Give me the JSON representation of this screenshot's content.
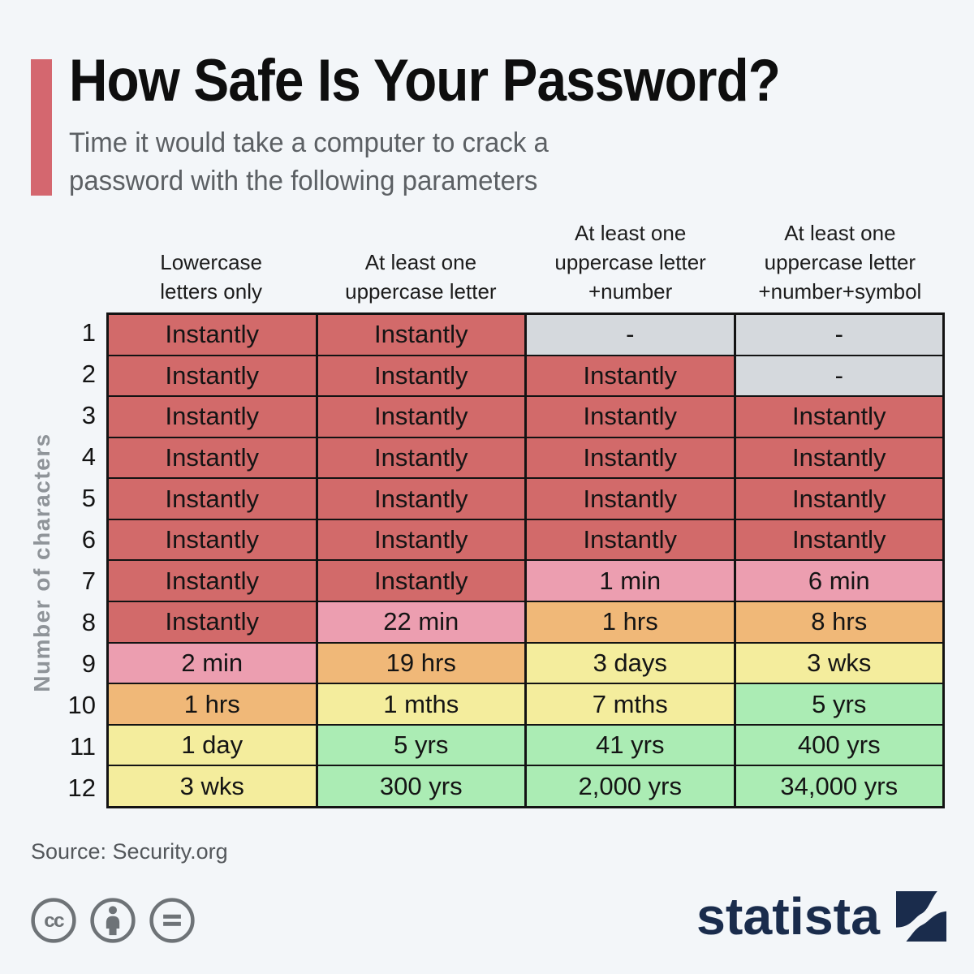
{
  "header": {
    "title": "How Safe Is Your Password?",
    "subtitle_lines": [
      "Time it would take a computer to crack a",
      "password with the following parameters"
    ]
  },
  "chart_data": {
    "type": "heatmap",
    "title": "How Safe Is Your Password?",
    "subtitle": "Time it would take a computer to crack a password with the following parameters",
    "y_axis_label": "Number of characters",
    "columns": [
      {
        "label": "Lowercase letters only",
        "label_lines": [
          "Lowercase",
          "letters only"
        ]
      },
      {
        "label": "At least one uppercase letter",
        "label_lines": [
          "At least one",
          "uppercase letter"
        ]
      },
      {
        "label": "At least one uppercase letter +number",
        "label_lines": [
          "At least one",
          "uppercase letter",
          "+number"
        ]
      },
      {
        "label": "At least one uppercase letter +number+symbol",
        "label_lines": [
          "At least one",
          "uppercase letter",
          "+number+symbol"
        ]
      }
    ],
    "rows": [
      {
        "label": "1",
        "cells": [
          {
            "text": "Instantly",
            "level": "red"
          },
          {
            "text": "Instantly",
            "level": "red"
          },
          {
            "text": "-",
            "level": "gray"
          },
          {
            "text": "-",
            "level": "gray"
          }
        ]
      },
      {
        "label": "2",
        "cells": [
          {
            "text": "Instantly",
            "level": "red"
          },
          {
            "text": "Instantly",
            "level": "red"
          },
          {
            "text": "Instantly",
            "level": "red"
          },
          {
            "text": "-",
            "level": "gray"
          }
        ]
      },
      {
        "label": "3",
        "cells": [
          {
            "text": "Instantly",
            "level": "red"
          },
          {
            "text": "Instantly",
            "level": "red"
          },
          {
            "text": "Instantly",
            "level": "red"
          },
          {
            "text": "Instantly",
            "level": "red"
          }
        ]
      },
      {
        "label": "4",
        "cells": [
          {
            "text": "Instantly",
            "level": "red"
          },
          {
            "text": "Instantly",
            "level": "red"
          },
          {
            "text": "Instantly",
            "level": "red"
          },
          {
            "text": "Instantly",
            "level": "red"
          }
        ]
      },
      {
        "label": "5",
        "cells": [
          {
            "text": "Instantly",
            "level": "red"
          },
          {
            "text": "Instantly",
            "level": "red"
          },
          {
            "text": "Instantly",
            "level": "red"
          },
          {
            "text": "Instantly",
            "level": "red"
          }
        ]
      },
      {
        "label": "6",
        "cells": [
          {
            "text": "Instantly",
            "level": "red"
          },
          {
            "text": "Instantly",
            "level": "red"
          },
          {
            "text": "Instantly",
            "level": "red"
          },
          {
            "text": "Instantly",
            "level": "red"
          }
        ]
      },
      {
        "label": "7",
        "cells": [
          {
            "text": "Instantly",
            "level": "red"
          },
          {
            "text": "Instantly",
            "level": "red"
          },
          {
            "text": "1 min",
            "level": "pink"
          },
          {
            "text": "6 min",
            "level": "pink"
          }
        ]
      },
      {
        "label": "8",
        "cells": [
          {
            "text": "Instantly",
            "level": "red"
          },
          {
            "text": "22 min",
            "level": "pink"
          },
          {
            "text": "1 hrs",
            "level": "orange"
          },
          {
            "text": "8 hrs",
            "level": "orange"
          }
        ]
      },
      {
        "label": "9",
        "cells": [
          {
            "text": "2 min",
            "level": "pink"
          },
          {
            "text": "19 hrs",
            "level": "orange"
          },
          {
            "text": "3 days",
            "level": "yellow"
          },
          {
            "text": "3 wks",
            "level": "yellow"
          }
        ]
      },
      {
        "label": "10",
        "cells": [
          {
            "text": "1 hrs",
            "level": "orange"
          },
          {
            "text": "1 mths",
            "level": "yellow"
          },
          {
            "text": "7 mths",
            "level": "yellow"
          },
          {
            "text": "5 yrs",
            "level": "green"
          }
        ]
      },
      {
        "label": "11",
        "cells": [
          {
            "text": "1 day",
            "level": "yellow"
          },
          {
            "text": "5 yrs",
            "level": "green"
          },
          {
            "text": "41 yrs",
            "level": "green"
          },
          {
            "text": "400 yrs",
            "level": "green"
          }
        ]
      },
      {
        "label": "12",
        "cells": [
          {
            "text": "3 wks",
            "level": "yellow"
          },
          {
            "text": "300 yrs",
            "level": "green"
          },
          {
            "text": "2,000 yrs",
            "level": "green"
          },
          {
            "text": "34,000 yrs",
            "level": "green"
          }
        ]
      }
    ]
  },
  "colors": {
    "background": "#f3f6f9",
    "accent_bar": "#d4676f",
    "grid_border": "#131313",
    "brand_navy": "#1a2c4c",
    "levels": {
      "red": "#d26a6a",
      "pink": "#ec9eb0",
      "orange": "#f0b878",
      "yellow": "#f4ed9d",
      "green": "#abecb4",
      "gray": "#d5d9dd"
    }
  },
  "footer": {
    "source": "Source: Security.org",
    "license_icons": [
      "cc-icon",
      "attribution-icon",
      "no-derivatives-icon"
    ],
    "brand": "statista"
  }
}
